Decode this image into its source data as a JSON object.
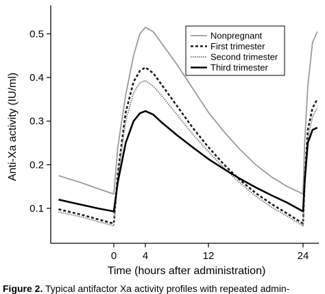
{
  "caption": {
    "label": "Figure 2.",
    "text": "Typical antifactor Xa activity profiles with repeated admin-"
  },
  "chart_data": {
    "type": "line",
    "xlabel": "Time (hours after administration)",
    "ylabel": "Anti-Xa activity (IU/ml)",
    "xlim": [
      -8,
      26
    ],
    "ylim": [
      0.02,
      0.565
    ],
    "xticks": [
      0,
      4,
      12,
      24
    ],
    "yticks": [
      0.1,
      0.2,
      0.3,
      0.4,
      0.5
    ],
    "ytick_labels": [
      "0.1",
      "0.2",
      "0.3",
      "0.4",
      "0.5"
    ],
    "grid": false,
    "legend": {
      "position": "top-right"
    },
    "series": [
      {
        "name": "Nonpregnant",
        "color": "#9a9a9a",
        "style": "solid",
        "x": [
          -7,
          -4,
          -2,
          0,
          0.5,
          1.5,
          2.5,
          3.3,
          4,
          5,
          6,
          8,
          10,
          12,
          14,
          16,
          18,
          20,
          22,
          24,
          24.2,
          24.6,
          25.2,
          25.8
        ],
        "y": [
          0.175,
          0.158,
          0.145,
          0.133,
          0.24,
          0.36,
          0.45,
          0.5,
          0.515,
          0.505,
          0.48,
          0.43,
          0.375,
          0.32,
          0.275,
          0.235,
          0.2,
          0.172,
          0.15,
          0.133,
          0.25,
          0.38,
          0.48,
          0.505
        ]
      },
      {
        "name": "First trimester",
        "color": "#1a1a1a",
        "style": "dashed",
        "x": [
          -7,
          -4,
          -2,
          0,
          0.5,
          1.5,
          2.5,
          3.3,
          4,
          5,
          6,
          8,
          10,
          12,
          14,
          16,
          18,
          20,
          22,
          24,
          24.2,
          24.6,
          25.2,
          25.8
        ],
        "y": [
          0.098,
          0.085,
          0.075,
          0.065,
          0.18,
          0.32,
          0.39,
          0.415,
          0.423,
          0.41,
          0.385,
          0.335,
          0.285,
          0.24,
          0.2,
          0.165,
          0.135,
          0.11,
          0.088,
          0.065,
          0.16,
          0.28,
          0.33,
          0.35
        ]
      },
      {
        "name": "Second trimester",
        "color": "#7a7a7a",
        "style": "dotted",
        "x": [
          -7,
          -4,
          -2,
          0,
          0.5,
          1.5,
          2.5,
          3.3,
          4,
          5,
          6,
          8,
          10,
          12,
          14,
          16,
          18,
          20,
          22,
          24,
          24.2,
          24.6,
          25.2,
          25.8
        ],
        "y": [
          0.092,
          0.08,
          0.07,
          0.06,
          0.17,
          0.3,
          0.365,
          0.388,
          0.393,
          0.38,
          0.36,
          0.315,
          0.27,
          0.23,
          0.192,
          0.158,
          0.128,
          0.103,
          0.082,
          0.06,
          0.15,
          0.26,
          0.31,
          0.33
        ]
      },
      {
        "name": "Third trimester",
        "color": "#000000",
        "style": "solid-thick",
        "x": [
          -7,
          -4,
          -2,
          0,
          0.5,
          1.5,
          2.5,
          3.3,
          4,
          5,
          6,
          8,
          10,
          12,
          14,
          16,
          18,
          20,
          22,
          24,
          24.2,
          24.6,
          25.2,
          25.8
        ],
        "y": [
          0.12,
          0.108,
          0.1,
          0.093,
          0.16,
          0.25,
          0.3,
          0.318,
          0.323,
          0.315,
          0.298,
          0.268,
          0.24,
          0.213,
          0.19,
          0.168,
          0.148,
          0.13,
          0.113,
          0.093,
          0.16,
          0.25,
          0.28,
          0.285
        ]
      }
    ]
  }
}
